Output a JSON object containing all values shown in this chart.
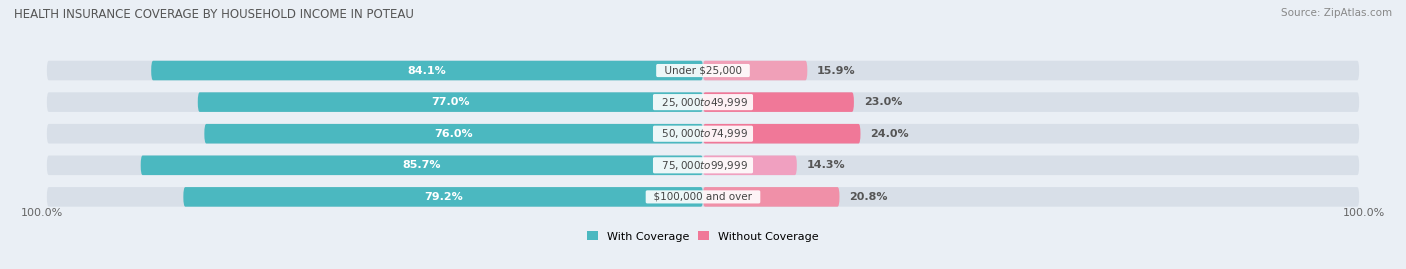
{
  "title": "HEALTH INSURANCE COVERAGE BY HOUSEHOLD INCOME IN POTEAU",
  "source": "Source: ZipAtlas.com",
  "categories": [
    "Under $25,000",
    "$25,000 to $49,999",
    "$50,000 to $74,999",
    "$75,000 to $99,999",
    "$100,000 and over"
  ],
  "with_coverage": [
    84.1,
    77.0,
    76.0,
    85.7,
    79.2
  ],
  "without_coverage": [
    15.9,
    23.0,
    24.0,
    14.3,
    20.8
  ],
  "color_with": "#4BB8C0",
  "color_without": "#F07898",
  "color_without_row1": "#F0A0B8",
  "color_without_row4": "#F0A0C0",
  "bg_color": "#EAEFF5",
  "bar_bg_color": "#D8DFE8",
  "title_fontsize": 8.5,
  "source_fontsize": 7.5,
  "legend_fontsize": 8,
  "label_fontsize": 8,
  "tick_fontsize": 8
}
